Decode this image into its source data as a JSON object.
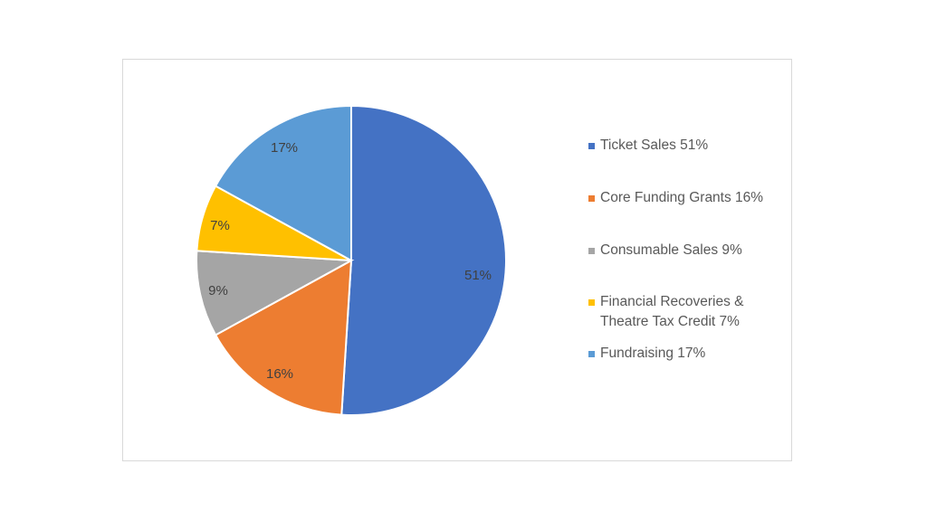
{
  "chart_data": {
    "type": "pie",
    "title": "",
    "categories": [
      "Ticket Sales",
      "Core Funding Grants",
      "Consumable Sales",
      "Financial Recoveries & Theatre Tax Credit",
      "Fundraising"
    ],
    "values": [
      51,
      16,
      9,
      7,
      17
    ],
    "unit": "%",
    "colors": [
      "#4472C4",
      "#ED7D31",
      "#A5A5A5",
      "#FFC000",
      "#5B9BD5"
    ],
    "data_labels": [
      "51%",
      "16%",
      "9%",
      "7%",
      "17%"
    ],
    "legend_position": "right",
    "legend": [
      {
        "line1": "Ticket Sales 51%",
        "line2": ""
      },
      {
        "line1": "Core Funding Grants 16%",
        "line2": ""
      },
      {
        "line1": "Consumable Sales 9%",
        "line2": ""
      },
      {
        "line1": "Financial Recoveries &",
        "line2": "Theatre Tax Credit 7%"
      },
      {
        "line1": "Fundraising 17%",
        "line2": ""
      }
    ]
  }
}
